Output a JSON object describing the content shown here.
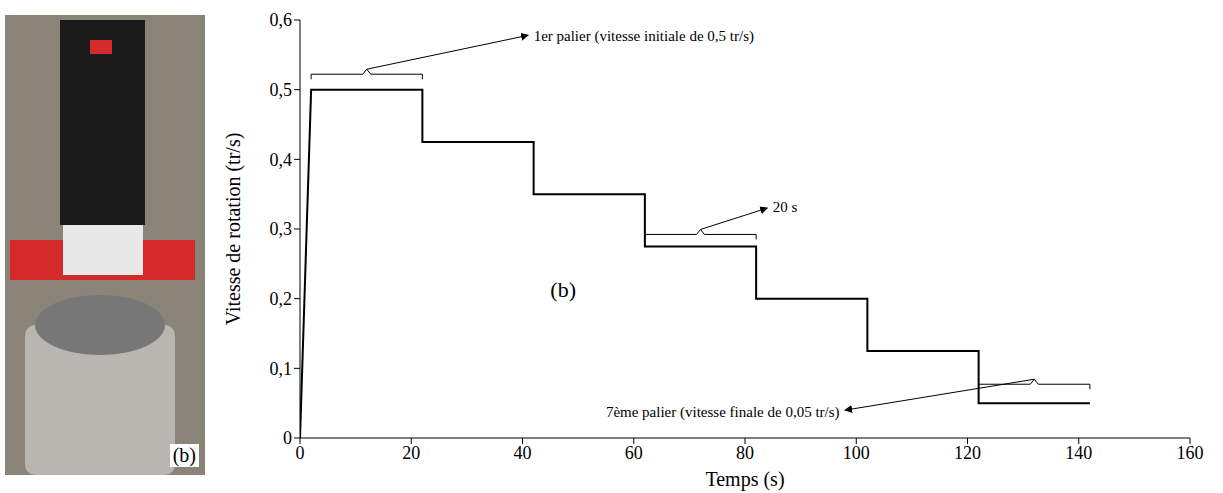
{
  "chart_data": {
    "type": "line",
    "x_label": "Temps (s)",
    "y_label": "Vitesse de rotation (tr/s)",
    "x": [
      0,
      2,
      22,
      22,
      42,
      42,
      62,
      62,
      82,
      82,
      102,
      102,
      122,
      122,
      142
    ],
    "values": [
      0,
      0.5,
      0.5,
      0.425,
      0.425,
      0.35,
      0.35,
      0.275,
      0.275,
      0.2,
      0.2,
      0.125,
      0.125,
      0.05,
      0.05
    ],
    "color": "#000000",
    "line_style": "solid",
    "marker": "none",
    "xlim": [
      0,
      160
    ],
    "xticks": [
      0,
      20,
      40,
      60,
      80,
      100,
      120,
      140,
      160
    ],
    "ylim": [
      0,
      0.6
    ],
    "yticks": [
      0,
      {
        "value": 0.1,
        "label": "0,1"
      },
      {
        "value": 0.2,
        "label": "0,2"
      },
      {
        "value": 0.3,
        "label": "0,3"
      },
      {
        "value": 0.4,
        "label": "0,4"
      },
      {
        "value": 0.5,
        "label": "0,5"
      },
      {
        "value": 0.6,
        "label": "0,6"
      }
    ],
    "grid": false,
    "annotations": [
      "1er palier (vitesse initiale de 0,5 tr/s)",
      "20 s",
      "(b)",
      "7ème palier (vitesse finale de 0,05 tr/s)"
    ]
  },
  "photo": {
    "label": "(b)"
  }
}
